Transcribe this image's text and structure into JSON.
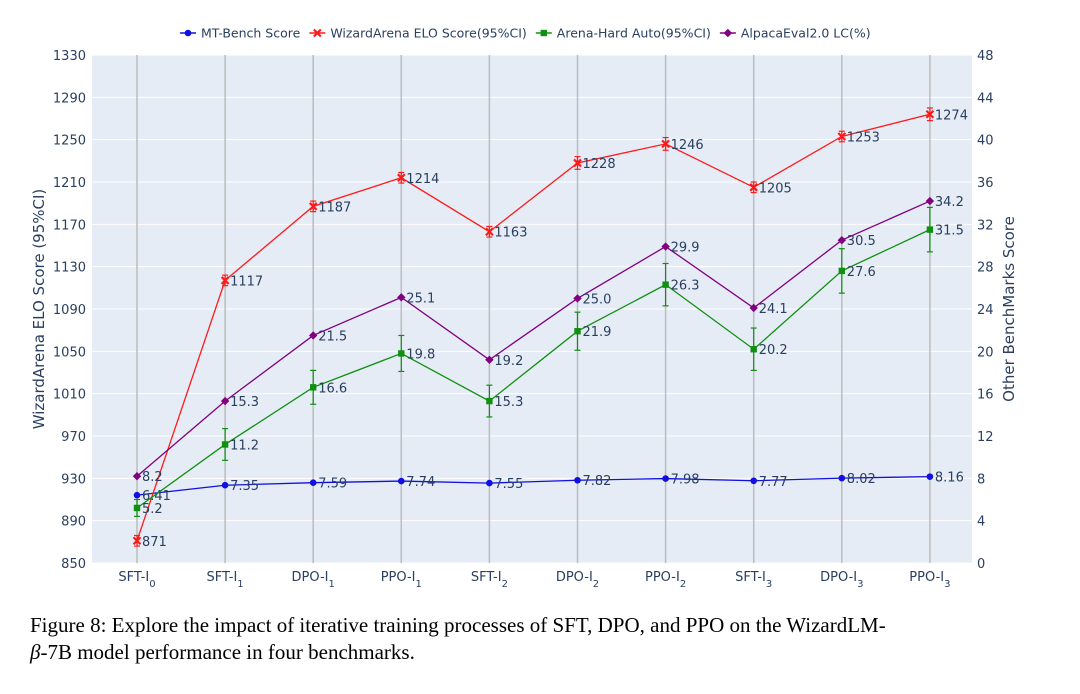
{
  "chart_data": {
    "type": "line",
    "categories": [
      "SFT-I0",
      "SFT-I1",
      "DPO-I1",
      "PPO-I1",
      "SFT-I2",
      "DPO-I2",
      "PPO-I2",
      "SFT-I3",
      "DPO-I3",
      "PPO-I3"
    ],
    "category_labels": [
      {
        "base": "SFT-I",
        "sub": "0"
      },
      {
        "base": "SFT-I",
        "sub": "1"
      },
      {
        "base": "DPO-I",
        "sub": "1"
      },
      {
        "base": "PPO-I",
        "sub": "1"
      },
      {
        "base": "SFT-I",
        "sub": "2"
      },
      {
        "base": "DPO-I",
        "sub": "2"
      },
      {
        "base": "PPO-I",
        "sub": "2"
      },
      {
        "base": "SFT-I",
        "sub": "3"
      },
      {
        "base": "DPO-I",
        "sub": "3"
      },
      {
        "base": "PPO-I",
        "sub": "3"
      }
    ],
    "y_left": {
      "label": "WizardArena ELO Score (95%CI)",
      "range": [
        850,
        1330
      ],
      "ticks": [
        850,
        890,
        930,
        970,
        1010,
        1050,
        1090,
        1130,
        1170,
        1210,
        1250,
        1290,
        1330
      ]
    },
    "y_right": {
      "label": "Other BenchMarks Score",
      "range": [
        0,
        48
      ],
      "ticks": [
        0,
        4,
        8,
        12,
        16,
        20,
        24,
        28,
        32,
        36,
        40,
        44,
        48
      ]
    },
    "grid": true,
    "legend_position": "top",
    "series": [
      {
        "name": "MT-Bench Score",
        "axis": "right",
        "color": "#1010e0",
        "marker": "circle",
        "values": [
          6.41,
          7.35,
          7.59,
          7.74,
          7.55,
          7.82,
          7.98,
          7.77,
          8.02,
          8.16
        ],
        "labels": [
          "6.41",
          "7.35",
          "7.59",
          "7.74",
          "7.55",
          "7.82",
          "7.98",
          "7.77",
          "8.02",
          "8.16"
        ],
        "error": [
          0,
          0,
          0,
          0,
          0,
          0,
          0,
          0,
          0,
          0
        ]
      },
      {
        "name": "WizardArena ELO Score(95%CI)",
        "axis": "left",
        "color": "#ff1a1a",
        "marker": "x",
        "values": [
          871,
          1117,
          1187,
          1214,
          1163,
          1228,
          1246,
          1205,
          1253,
          1274
        ],
        "labels": [
          "871",
          "1117",
          "1187",
          "1214",
          "1163",
          "1228",
          "1246",
          "1205",
          "1253",
          "1274"
        ],
        "error": [
          5,
          5,
          5,
          5,
          5,
          6,
          6,
          5,
          5,
          6
        ]
      },
      {
        "name": "Arena-Hard Auto(95%CI)",
        "axis": "right",
        "color": "#109010",
        "marker": "square",
        "values": [
          5.2,
          11.2,
          16.6,
          19.8,
          15.3,
          21.9,
          26.3,
          20.2,
          27.6,
          31.5
        ],
        "labels": [
          "5.2",
          "11.2",
          "16.6",
          "19.8",
          "15.3",
          "21.9",
          "26.3",
          "20.2",
          "27.6",
          "31.5"
        ],
        "error": [
          0.8,
          1.5,
          1.6,
          1.7,
          1.5,
          1.8,
          2.0,
          2.0,
          2.1,
          2.1
        ]
      },
      {
        "name": "AlpacaEval2.0 LC(%)",
        "axis": "right",
        "color": "#800080",
        "marker": "diamond",
        "values": [
          8.2,
          15.3,
          21.5,
          25.1,
          19.2,
          25.0,
          29.9,
          24.1,
          30.5,
          34.2
        ],
        "labels": [
          "8.2",
          "15.3",
          "21.5",
          "25.1",
          "19.2",
          "25.0",
          "29.9",
          "24.1",
          "30.5",
          "34.2"
        ],
        "error": [
          0,
          0,
          0,
          0,
          0,
          0,
          0,
          0,
          0,
          0
        ]
      }
    ]
  },
  "caption": {
    "line1": "Figure 8: Explore the impact of iterative training processes of SFT, DPO, and PPO on the WizardLM-",
    "line2_symbol": "β",
    "line2_rest": "-7B model performance in four benchmarks."
  }
}
